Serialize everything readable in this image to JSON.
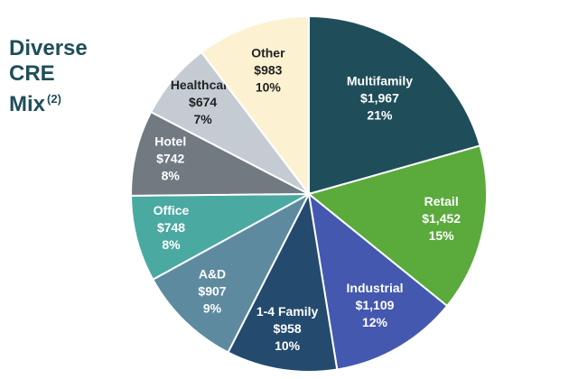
{
  "title": {
    "line1": "Diverse",
    "line2": "CRE",
    "line3": "Mix",
    "footnote": "(2)"
  },
  "chart_data": {
    "type": "pie",
    "title": "Diverse CRE Mix (2)",
    "slices": [
      {
        "name": "Multifamily",
        "value_label": "$1,967",
        "value": 1967,
        "percent_label": "21%",
        "color": "#1f4e5a",
        "text_color": "#ffffff"
      },
      {
        "name": "Retail",
        "value_label": "$1,452",
        "value": 1452,
        "percent_label": "15%",
        "color": "#5aaa3c",
        "text_color": "#ffffff"
      },
      {
        "name": "Industrial",
        "value_label": "$1,109",
        "value": 1109,
        "percent_label": "12%",
        "color": "#4458b0",
        "text_color": "#ffffff"
      },
      {
        "name": "1-4 Family",
        "value_label": "$958",
        "value": 958,
        "percent_label": "10%",
        "color": "#244a6e",
        "text_color": "#ffffff"
      },
      {
        "name": "A&D",
        "value_label": "$907",
        "value": 907,
        "percent_label": "9%",
        "color": "#5e8aa0",
        "text_color": "#ffffff"
      },
      {
        "name": "Office",
        "value_label": "$748",
        "value": 748,
        "percent_label": "8%",
        "color": "#4aaaa2",
        "text_color": "#ffffff"
      },
      {
        "name": "Hotel",
        "value_label": "$742",
        "value": 742,
        "percent_label": "8%",
        "color": "#707a80",
        "text_color": "#ffffff"
      },
      {
        "name": "Healthcare",
        "value_label": "$674",
        "value": 674,
        "percent_label": "7%",
        "color": "#c4cbd2",
        "text_color": "#222222"
      },
      {
        "name": "Other",
        "value_label": "$983",
        "value": 983,
        "percent_label": "10%",
        "color": "#fcf2d2",
        "text_color": "#222222"
      }
    ]
  }
}
